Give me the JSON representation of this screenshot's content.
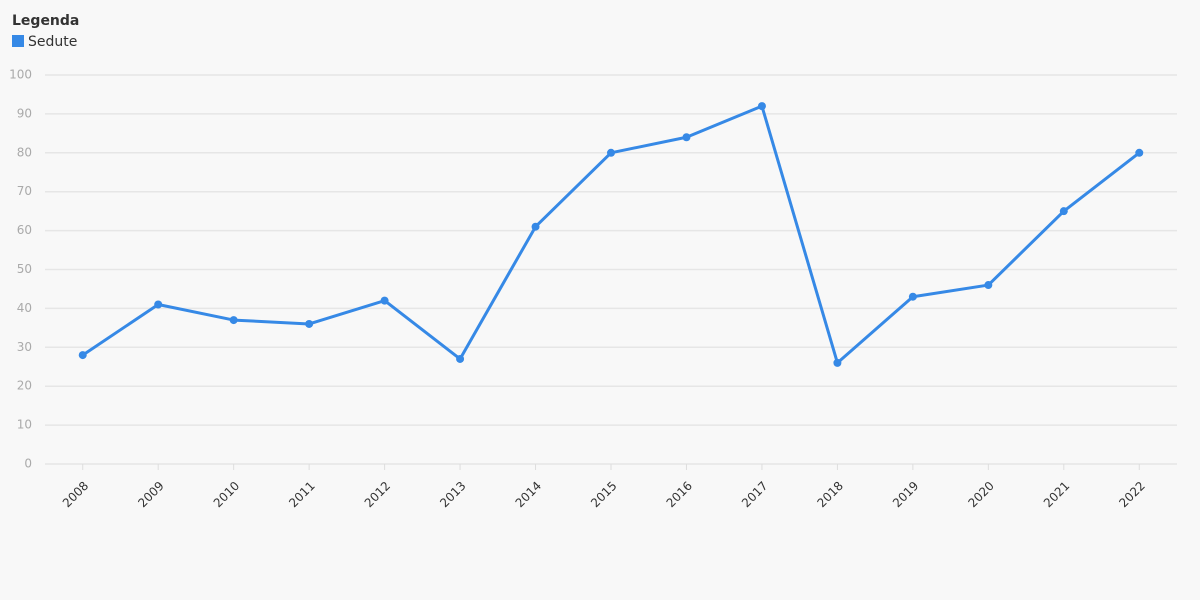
{
  "chart_data": {
    "type": "line",
    "legend_title": "Legenda",
    "categories": [
      "2008",
      "2009",
      "2010",
      "2011",
      "2012",
      "2013",
      "2014",
      "2015",
      "2016",
      "2017",
      "2018",
      "2019",
      "2020",
      "2021",
      "2022"
    ],
    "series": [
      {
        "name": "Sedute",
        "color": "#3689e6",
        "values": [
          28,
          41,
          37,
          36,
          42,
          27,
          61,
          80,
          84,
          92,
          26,
          43,
          46,
          65,
          80
        ]
      }
    ],
    "ylim": [
      0,
      100
    ],
    "yticks": [
      0,
      10,
      20,
      30,
      40,
      50,
      60,
      70,
      80,
      90,
      100
    ],
    "grid": true,
    "legend": "top-left"
  }
}
